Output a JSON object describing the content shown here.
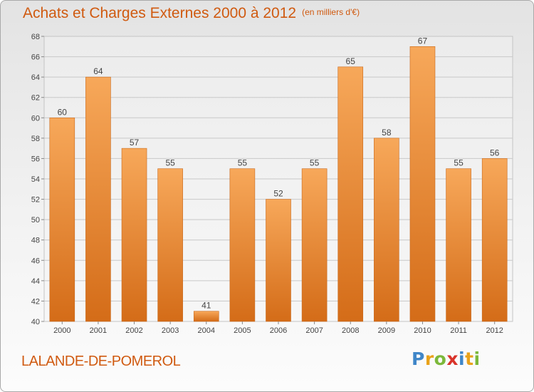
{
  "header": {
    "title": "Achats et Charges Externes 2000 à 2012",
    "subtitle": "(en milliers d'€)"
  },
  "commune": "LALANDE-DE-POMEROL",
  "logo": {
    "letters": [
      "P",
      "r",
      "o",
      "x",
      "i",
      "t",
      "i"
    ],
    "colors": [
      "#3f86c8",
      "#e9a21a",
      "#7cb83a",
      "#d9332a",
      "#3f86c8",
      "#e9a21a",
      "#7cb83a"
    ]
  },
  "colors": {
    "bar_top": "#f7a85a",
    "bar_bottom": "#d46c18",
    "text_accent": "#d05a10",
    "grid": "#c8c8c8"
  },
  "chart_data": {
    "type": "bar",
    "categories": [
      "2000",
      "2001",
      "2002",
      "2003",
      "2004",
      "2005",
      "2006",
      "2007",
      "2008",
      "2009",
      "2010",
      "2011",
      "2012"
    ],
    "values": [
      60,
      64,
      57,
      55,
      41,
      55,
      52,
      55,
      65,
      58,
      67,
      55,
      56
    ],
    "ylim": [
      40,
      68
    ],
    "yticks": [
      40,
      42,
      44,
      46,
      48,
      50,
      52,
      54,
      56,
      58,
      60,
      62,
      64,
      66,
      68
    ],
    "grid": true,
    "data_labels": true
  }
}
